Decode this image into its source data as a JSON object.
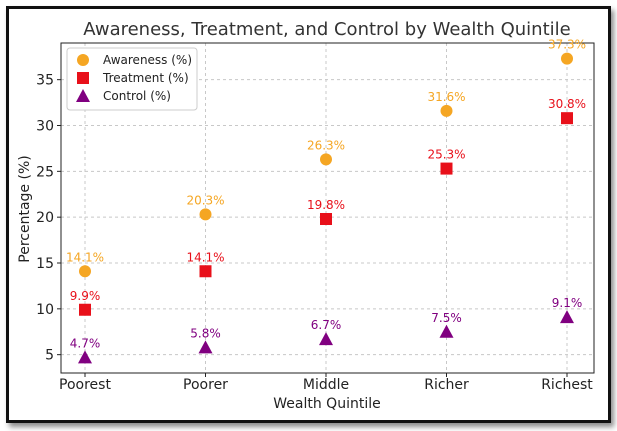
{
  "chart_data": {
    "type": "scatter",
    "title": "Awareness, Treatment, and Control by Wealth Quintile",
    "xlabel": "Wealth Quintile",
    "ylabel": "Percentage (%)",
    "categories": [
      "Poorest",
      "Poorer",
      "Middle",
      "Richer",
      "Richest"
    ],
    "ylim": [
      3.0,
      39.0
    ],
    "yticks": [
      5,
      10,
      15,
      20,
      25,
      30,
      35
    ],
    "grid": true,
    "legend_position": "top-left",
    "series": [
      {
        "name": "Awareness (%)",
        "marker": "circle",
        "color": "#f5a623",
        "values": [
          14.1,
          20.3,
          26.3,
          31.6,
          37.3
        ],
        "labels": [
          "14.1%",
          "20.3%",
          "26.3%",
          "31.6%",
          "37.3%"
        ]
      },
      {
        "name": "Treatment (%)",
        "marker": "square",
        "color": "#e8101a",
        "values": [
          9.9,
          14.1,
          19.8,
          25.3,
          30.8
        ],
        "labels": [
          "9.9%",
          "14.1%",
          "19.8%",
          "25.3%",
          "30.8%"
        ]
      },
      {
        "name": "Control (%)",
        "marker": "triangle",
        "color": "#800080",
        "values": [
          4.7,
          5.8,
          6.7,
          7.5,
          9.1
        ],
        "labels": [
          "4.7%",
          "5.8%",
          "6.7%",
          "7.5%",
          "9.1%"
        ]
      }
    ]
  }
}
